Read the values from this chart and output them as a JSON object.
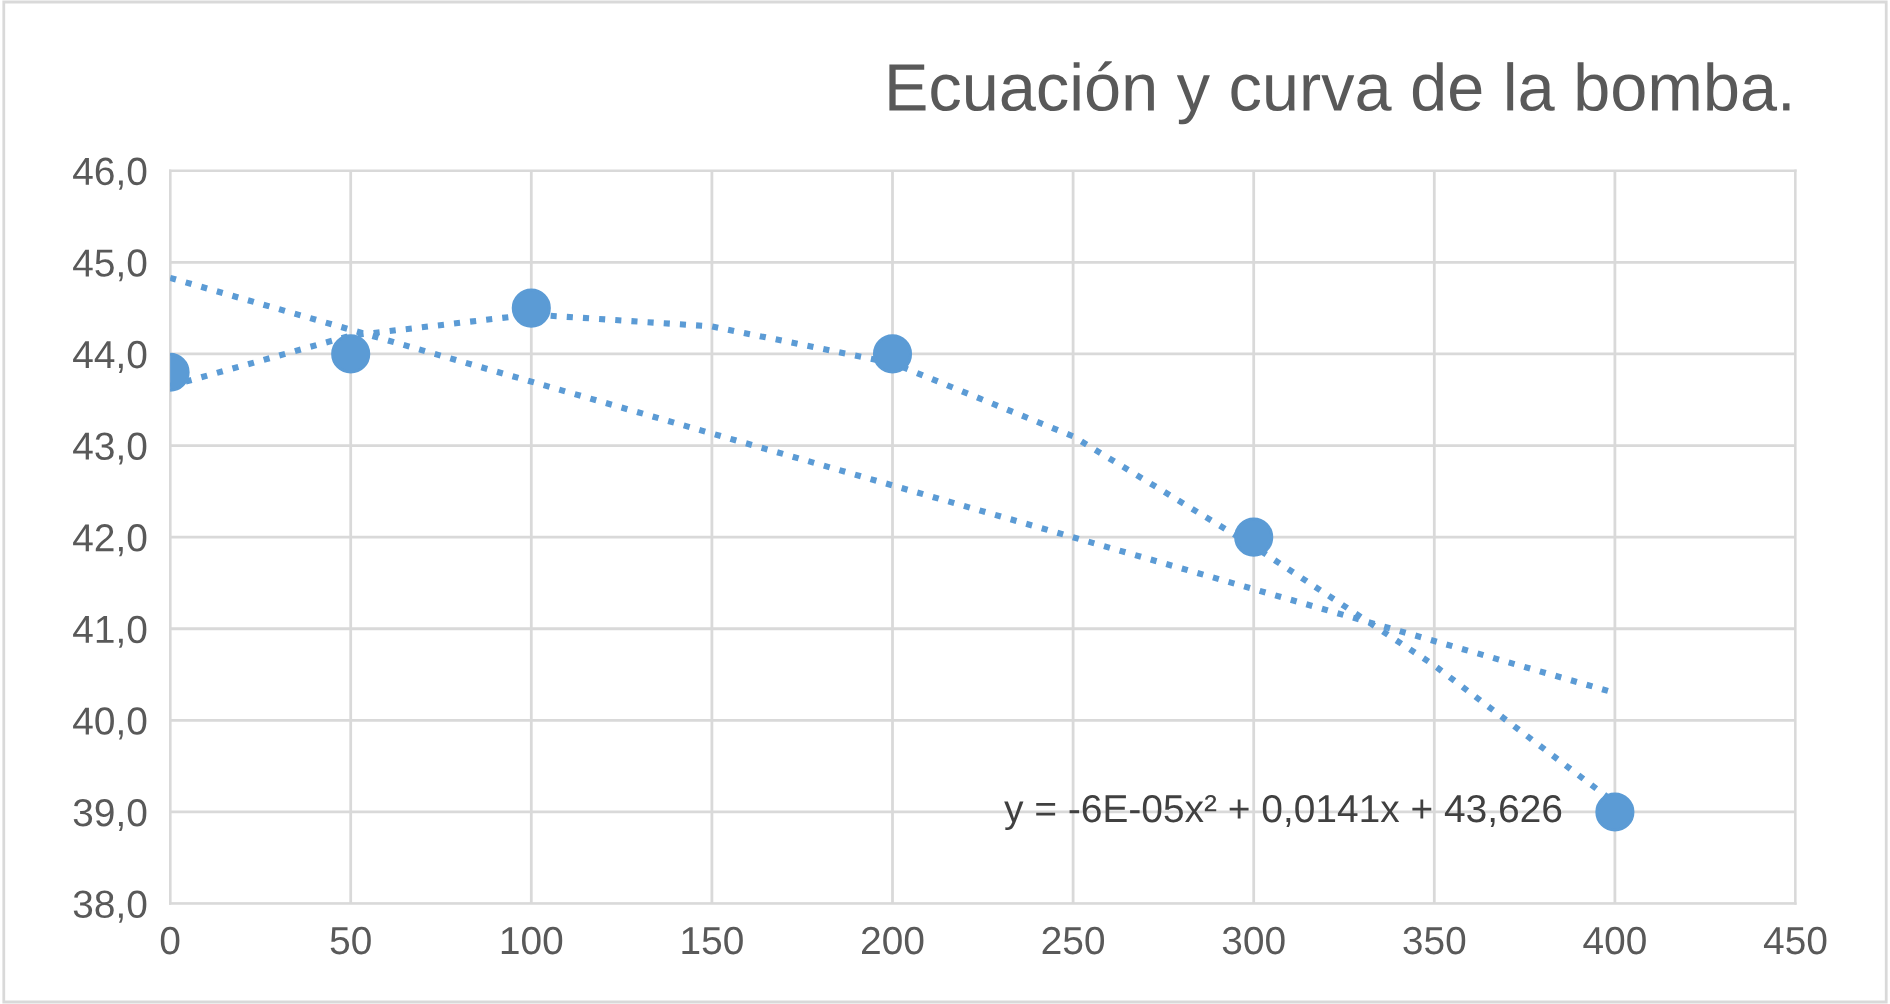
{
  "chart_data": {
    "type": "scatter",
    "title": "Ecuación y curva de la bomba.",
    "xlim": [
      0,
      450
    ],
    "xticks": [
      0,
      50,
      100,
      150,
      200,
      250,
      300,
      350,
      400,
      450
    ],
    "ylim": [
      38,
      46
    ],
    "yticks": [
      {
        "value": 38,
        "label": "38,0"
      },
      {
        "value": 39,
        "label": "39,0"
      },
      {
        "value": 40,
        "label": "40,0"
      },
      {
        "value": 41,
        "label": "41,0"
      },
      {
        "value": 42,
        "label": "42,0"
      },
      {
        "value": 43,
        "label": "43,0"
      },
      {
        "value": 44,
        "label": "44,0"
      },
      {
        "value": 45,
        "label": "45,0"
      },
      {
        "value": 46,
        "label": "46,0"
      }
    ],
    "grid": true,
    "series": [
      {
        "color": "#5b9bd5",
        "marker": "circle",
        "x": [
          0,
          50,
          100,
          200,
          300,
          400
        ],
        "values": [
          43.8,
          44.0,
          44.5,
          44.0,
          42.0,
          39.0
        ]
      },
      {
        "type": "line",
        "color": "#5b9bd5",
        "line_style": "dotted",
        "marker": "none",
        "x": [
          0,
          400
        ],
        "values": [
          44.83,
          40.3
        ]
      },
      {
        "type": "line",
        "color": "#5b9bd5",
        "line_style": "dotted",
        "marker": "none",
        "x": [
          0,
          50,
          100,
          150,
          200,
          250,
          300,
          350,
          400
        ],
        "values": [
          43.65,
          44.2,
          44.43,
          44.3,
          43.9,
          43.1,
          41.9,
          40.6,
          39.1
        ]
      }
    ],
    "annotations": [
      "y = -6E-05x² + 0,0141x + 43,626"
    ]
  }
}
